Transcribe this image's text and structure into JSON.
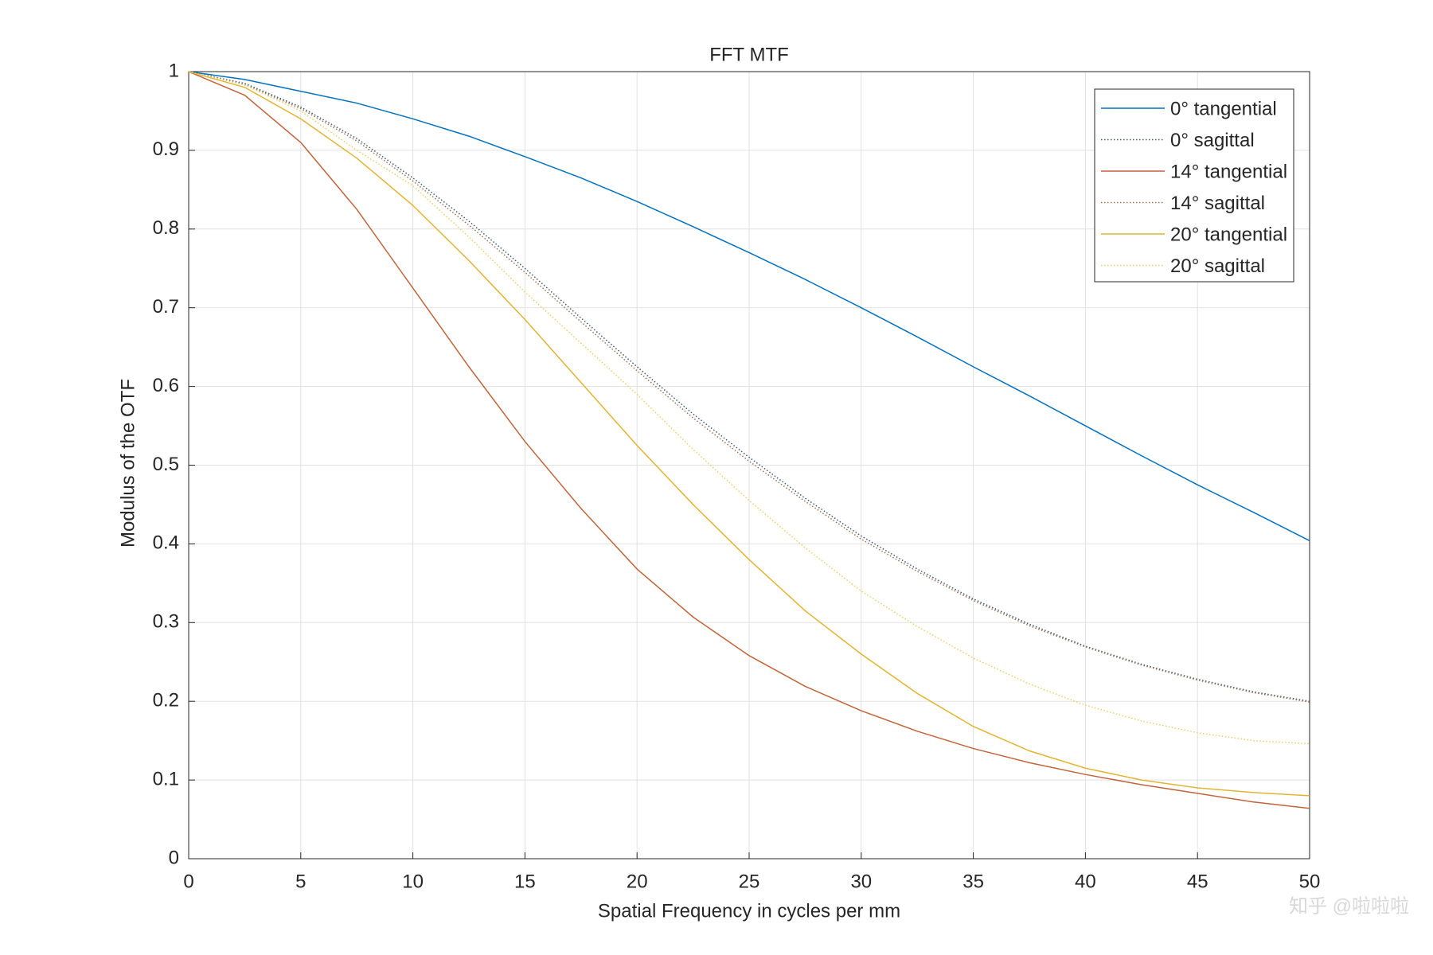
{
  "chart_data": {
    "type": "line",
    "title": "FFT MTF",
    "xlabel": "Spatial Frequency in cycles per mm",
    "ylabel": "Modulus of the OTF",
    "x": [
      0,
      2.5,
      5,
      7.5,
      10,
      12.5,
      15,
      17.5,
      20,
      22.5,
      25,
      27.5,
      30,
      32.5,
      35,
      37.5,
      40,
      42.5,
      45,
      47.5,
      50
    ],
    "series": [
      {
        "name": "0° tangential",
        "color": "#0072bd",
        "style": "solid",
        "values": [
          1,
          0.99,
          0.975,
          0.96,
          0.94,
          0.918,
          0.892,
          0.865,
          0.835,
          0.803,
          0.77,
          0.736,
          0.7,
          0.663,
          0.625,
          0.588,
          0.55,
          0.512,
          0.475,
          0.44,
          0.404
        ]
      },
      {
        "name": "0° sagittal",
        "color": "#3a5a78",
        "style": "dotted",
        "values": [
          1,
          0.985,
          0.955,
          0.915,
          0.865,
          0.81,
          0.75,
          0.687,
          0.625,
          0.565,
          0.51,
          0.458,
          0.41,
          0.368,
          0.33,
          0.298,
          0.27,
          0.247,
          0.228,
          0.212,
          0.2
        ]
      },
      {
        "name": "14° tangential",
        "color": "#c0643a",
        "style": "solid",
        "values": [
          1,
          0.97,
          0.91,
          0.825,
          0.725,
          0.625,
          0.53,
          0.445,
          0.368,
          0.307,
          0.258,
          0.219,
          0.188,
          0.162,
          0.14,
          0.122,
          0.107,
          0.094,
          0.083,
          0.072,
          0.064
        ]
      },
      {
        "name": "14° sagittal",
        "color": "#a07050",
        "style": "dotted",
        "values": [
          1,
          0.984,
          0.953,
          0.912,
          0.861,
          0.805,
          0.745,
          0.682,
          0.62,
          0.56,
          0.505,
          0.454,
          0.406,
          0.365,
          0.328,
          0.296,
          0.269,
          0.246,
          0.227,
          0.211,
          0.199
        ]
      },
      {
        "name": "20° tangential",
        "color": "#e2b431",
        "style": "solid",
        "values": [
          1,
          0.98,
          0.94,
          0.89,
          0.83,
          0.76,
          0.685,
          0.605,
          0.525,
          0.45,
          0.38,
          0.315,
          0.26,
          0.21,
          0.168,
          0.137,
          0.115,
          0.1,
          0.09,
          0.084,
          0.08
        ]
      },
      {
        "name": "20° sagittal",
        "color": "#e8cf6a",
        "style": "dotted",
        "values": [
          1,
          0.983,
          0.95,
          0.9,
          0.855,
          0.79,
          0.72,
          0.655,
          0.59,
          0.52,
          0.455,
          0.395,
          0.34,
          0.295,
          0.255,
          0.222,
          0.195,
          0.175,
          0.16,
          0.15,
          0.146
        ]
      }
    ],
    "xlim": [
      0,
      50
    ],
    "xticks": [
      0,
      5,
      10,
      15,
      20,
      25,
      30,
      35,
      40,
      45,
      50
    ],
    "ylim": [
      0,
      1
    ],
    "yticks": [
      0,
      0.1,
      0.2,
      0.3,
      0.4,
      0.5,
      0.6,
      0.7,
      0.8,
      0.9,
      1
    ],
    "grid": true,
    "legend": "upper right"
  },
  "watermark": "知乎 @啦啦啦"
}
